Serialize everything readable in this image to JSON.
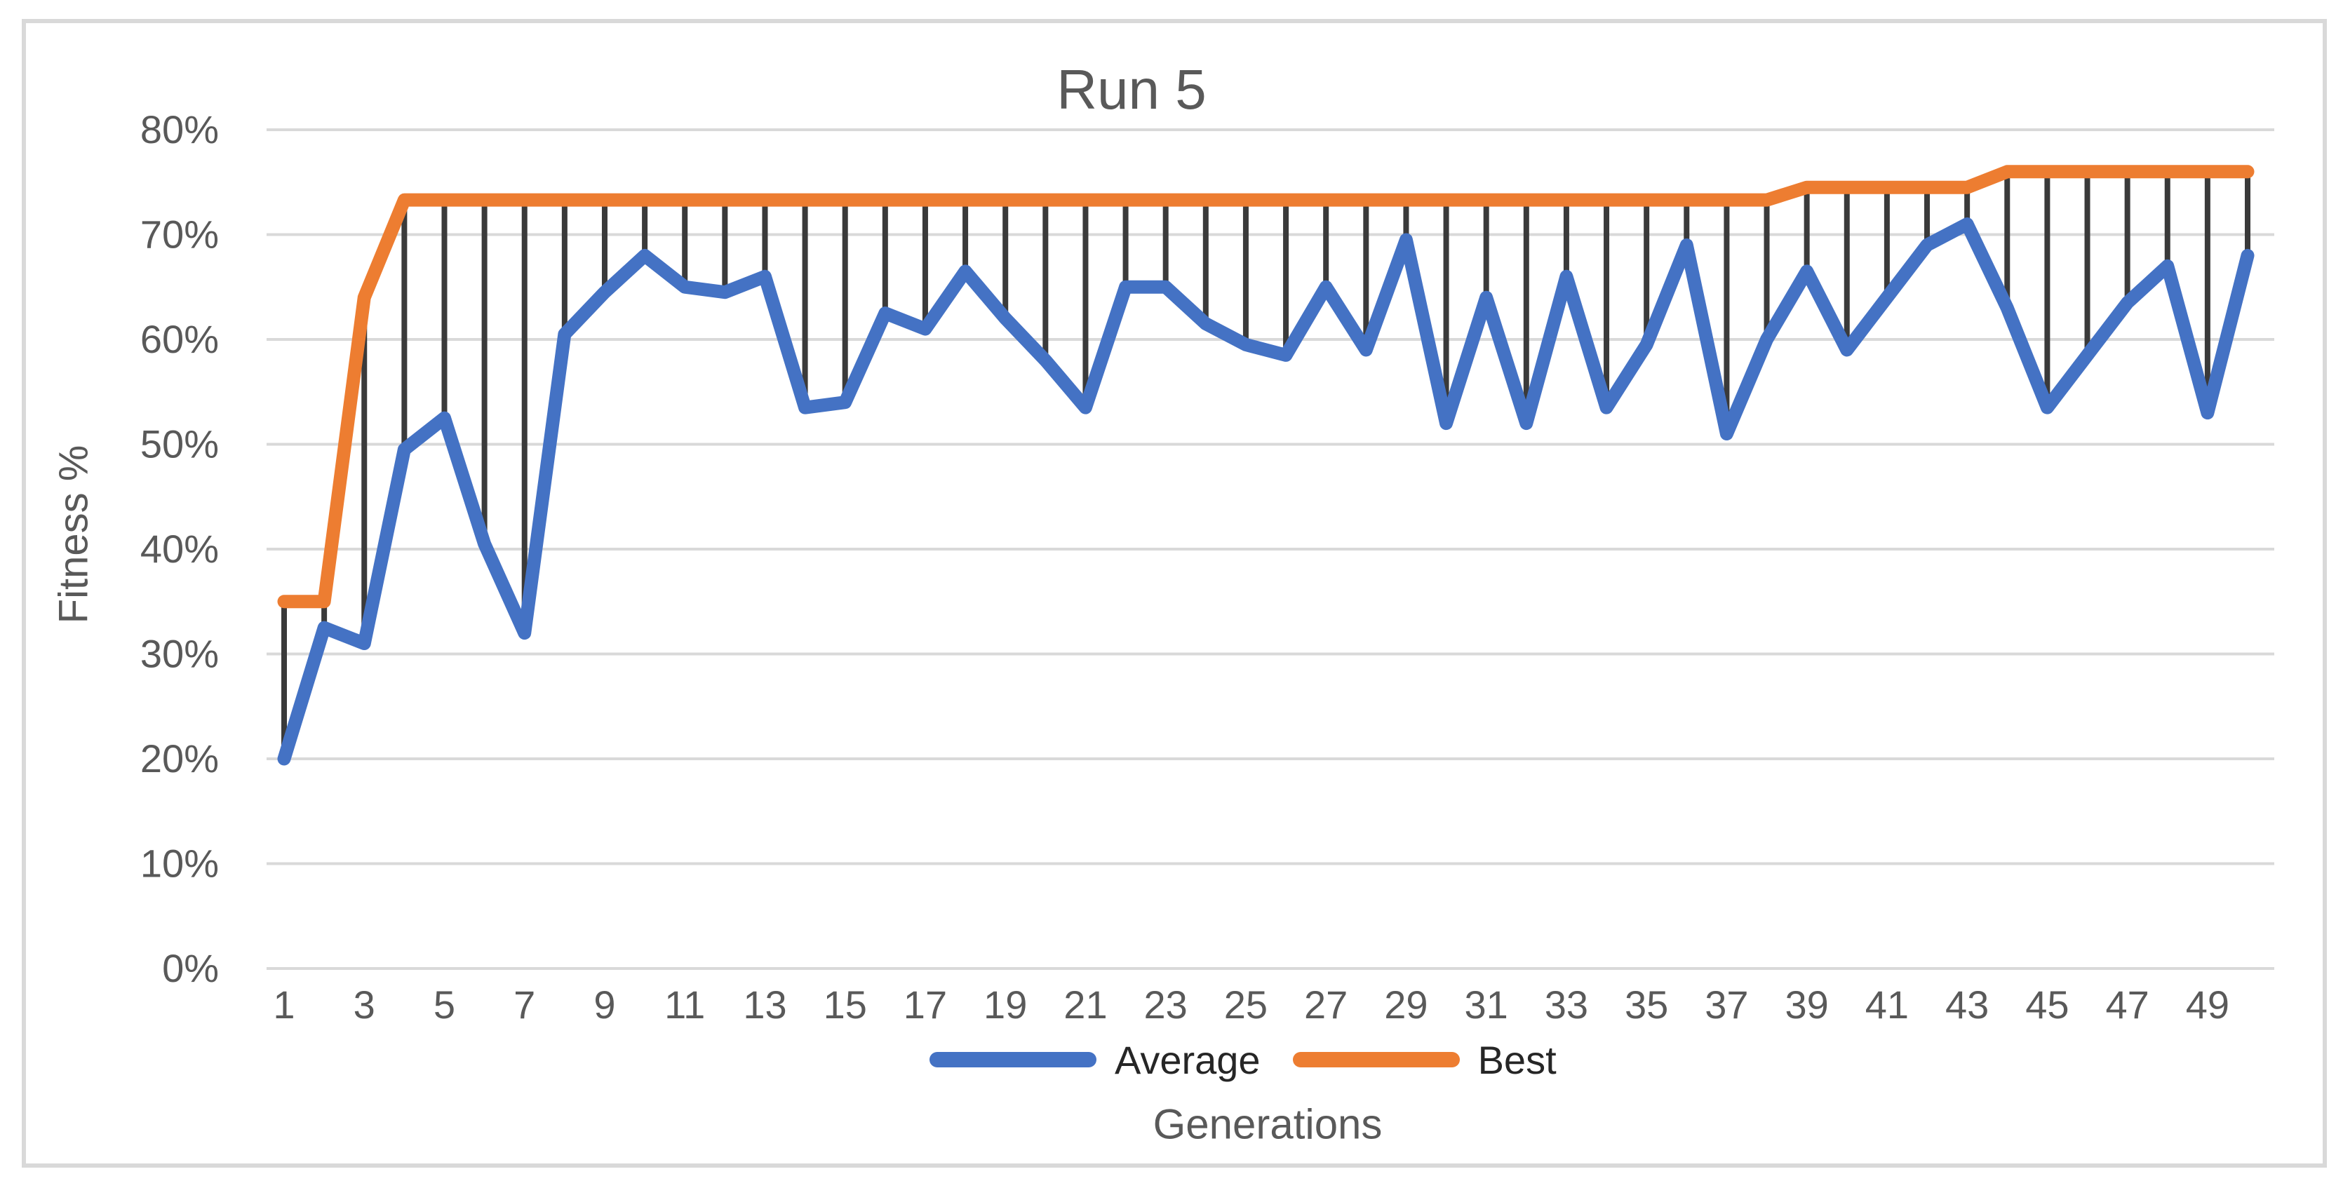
{
  "figure": {
    "title": "Run 5"
  },
  "axes": {
    "y_title": "Fitness %",
    "x_title": "Generations",
    "y_ticks": [
      {
        "value": 0,
        "label": "0%"
      },
      {
        "value": 10,
        "label": "10%"
      },
      {
        "value": 20,
        "label": "20%"
      },
      {
        "value": 30,
        "label": "30%"
      },
      {
        "value": 40,
        "label": "40%"
      },
      {
        "value": 50,
        "label": "50%"
      },
      {
        "value": 60,
        "label": "60%"
      },
      {
        "value": 70,
        "label": "70%"
      },
      {
        "value": 80,
        "label": "80%"
      }
    ],
    "x_tick_values": [
      1,
      3,
      5,
      7,
      9,
      11,
      13,
      15,
      17,
      19,
      21,
      23,
      25,
      27,
      29,
      31,
      33,
      35,
      37,
      39,
      41,
      43,
      45,
      47,
      49
    ]
  },
  "legend": [
    {
      "label": "Average",
      "color": "#4472C4"
    },
    {
      "label": "Best",
      "color": "#ED7D31"
    }
  ],
  "colors": {
    "gridline": "#D9D9D9",
    "frame_border": "#D9D9D9",
    "highlow_line": "#3A3A3A",
    "axis_text": "#595959",
    "legend_text": "#262626",
    "background": "#FFFFFF"
  },
  "chart_data": {
    "type": "line",
    "title": "Run 5",
    "xlabel": "Generations",
    "ylabel": "Fitness %",
    "x": [
      1,
      2,
      3,
      4,
      5,
      6,
      7,
      8,
      9,
      10,
      11,
      12,
      13,
      14,
      15,
      16,
      17,
      18,
      19,
      20,
      21,
      22,
      23,
      24,
      25,
      26,
      27,
      28,
      29,
      30,
      31,
      32,
      33,
      34,
      35,
      36,
      37,
      38,
      39,
      40,
      41,
      42,
      43,
      44,
      45,
      46,
      47,
      48,
      49,
      50
    ],
    "series": [
      {
        "name": "Average",
        "color": "#4472C4",
        "values": [
          20,
          32.5,
          31,
          49.5,
          52.5,
          40.5,
          32,
          60.5,
          64.5,
          68,
          65,
          64.5,
          66,
          53.5,
          54,
          62.5,
          61,
          66.5,
          62,
          58,
          53.5,
          65,
          65,
          61.5,
          59.5,
          58.5,
          65,
          59,
          69.5,
          52,
          64,
          52,
          66,
          53.5,
          59.5,
          69,
          51,
          60,
          66.5,
          59,
          64,
          69,
          71,
          63,
          53.5,
          58.5,
          63.5,
          67,
          53,
          68
        ]
      },
      {
        "name": "Best",
        "color": "#ED7D31",
        "values": [
          35,
          35,
          64,
          73.3,
          73.3,
          73.3,
          73.3,
          73.3,
          73.3,
          73.3,
          73.3,
          73.3,
          73.3,
          73.3,
          73.3,
          73.3,
          73.3,
          73.3,
          73.3,
          73.3,
          73.3,
          73.3,
          73.3,
          73.3,
          73.3,
          73.3,
          73.3,
          73.3,
          73.3,
          73.3,
          73.3,
          73.3,
          73.3,
          73.3,
          73.3,
          73.3,
          73.3,
          73.3,
          74.5,
          74.5,
          74.5,
          74.5,
          74.5,
          76,
          76,
          76,
          76,
          76,
          76,
          76
        ]
      }
    ],
    "high_low_lines": true,
    "ylim": [
      0,
      80
    ],
    "grid": true,
    "legend_position": "bottom"
  }
}
